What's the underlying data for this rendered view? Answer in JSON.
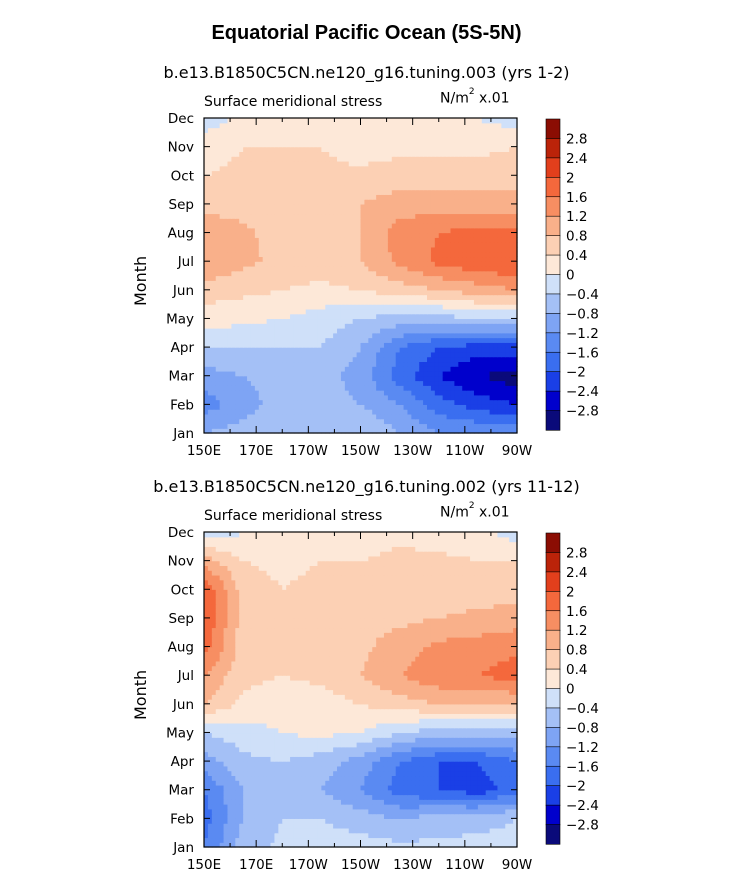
{
  "page": {
    "title": "Equatorial Pacific Ocean (5S-5N)"
  },
  "panels": [
    {
      "case_title": "b.e13.B1850C5CN.ne120_g16.tuning.003 (yrs 1-2)",
      "left_string": "Surface meridional stress",
      "units": "N/m",
      "units_sup": "2",
      "units_scale": " x.01",
      "ylabel": "Month"
    },
    {
      "case_title": "b.e13.B1850C5CN.ne120_g16.tuning.002 (yrs 11-12)",
      "left_string": "Surface meridional stress",
      "units": "N/m",
      "units_sup": "2",
      "units_scale": " x.01",
      "ylabel": "Month"
    }
  ],
  "colors": {
    "levels": [
      "#0a0a7a",
      "#0000cc",
      "#1a3fe6",
      "#3a6ef0",
      "#5a8af2",
      "#7ea4f4",
      "#a4c0f6",
      "#cfe0f9",
      "#fde8d8",
      "#fcd0b4",
      "#f9b08a",
      "#f78e62",
      "#f4683c",
      "#e23f1c",
      "#bb2309",
      "#8b0d03"
    ]
  },
  "chart_data": [
    {
      "type": "heatmap",
      "title": "b.e13.B1850C5CN.ne120_g16.tuning.003 (yrs 1-2)",
      "xlabel": "",
      "ylabel": "Month",
      "x_ticks": [
        "150E",
        "170E",
        "170W",
        "150W",
        "130W",
        "110W",
        "90W"
      ],
      "x_lon": [
        150,
        170,
        190,
        210,
        230,
        250,
        270
      ],
      "xlim": [
        150,
        270
      ],
      "y_ticks": [
        "Jan",
        "Feb",
        "Mar",
        "Apr",
        "May",
        "Jun",
        "Jul",
        "Aug",
        "Sep",
        "Oct",
        "Nov",
        "Dec"
      ],
      "ylim": [
        1,
        12
      ],
      "colorbar_levels": [
        -2.8,
        -2.4,
        -2,
        -1.6,
        -1.2,
        -0.8,
        -0.4,
        0,
        0.4,
        0.8,
        1.2,
        1.6,
        2,
        2.4,
        2.8
      ],
      "colorbar_labels": [
        "2.8",
        "2.4",
        "2",
        "1.6",
        "1.2",
        "0.8",
        "0.4",
        "0",
        "−0.4",
        "−0.8",
        "−1.2",
        "−1.6",
        "−2",
        "−2.4",
        "−2.8"
      ],
      "lon": [
        150,
        165,
        180,
        195,
        210,
        225,
        240,
        255,
        270
      ],
      "months": [
        "Jan",
        "Feb",
        "Mar",
        "Apr",
        "May",
        "Jun",
        "Jul",
        "Aug",
        "Sep",
        "Oct",
        "Nov",
        "Dec"
      ],
      "values": [
        [
          -0.8,
          -0.6,
          -0.4,
          -0.4,
          -0.4,
          -0.8,
          -1.2,
          -1.2,
          -1.2
        ],
        [
          -1.4,
          -1.0,
          -0.6,
          -0.6,
          -0.8,
          -1.2,
          -1.8,
          -2.2,
          -2.4
        ],
        [
          -1.0,
          -0.8,
          -0.6,
          -0.6,
          -1.0,
          -1.8,
          -2.4,
          -2.8,
          -3.0
        ],
        [
          -0.4,
          -0.4,
          -0.4,
          -0.4,
          -0.8,
          -1.6,
          -2.0,
          -2.2,
          -2.2
        ],
        [
          0.2,
          0.1,
          0.0,
          -0.2,
          -0.4,
          -0.6,
          -0.6,
          -0.4,
          -0.4
        ],
        [
          0.6,
          0.5,
          0.4,
          0.3,
          0.4,
          0.6,
          0.8,
          1.0,
          1.2
        ],
        [
          1.2,
          0.9,
          0.7,
          0.6,
          0.8,
          1.3,
          1.7,
          1.9,
          2.0
        ],
        [
          1.2,
          0.9,
          0.6,
          0.6,
          0.8,
          1.4,
          1.6,
          1.8,
          1.7
        ],
        [
          0.6,
          0.6,
          0.5,
          0.5,
          0.8,
          1.0,
          1.0,
          1.0,
          1.0
        ],
        [
          0.4,
          0.5,
          0.5,
          0.5,
          0.5,
          0.6,
          0.6,
          0.6,
          0.6
        ],
        [
          0.2,
          0.4,
          0.4,
          0.4,
          0.2,
          0.3,
          0.3,
          0.3,
          0.4
        ],
        [
          -0.2,
          0.1,
          0.2,
          0.2,
          0.1,
          0.1,
          0.1,
          0.0,
          -0.2
        ]
      ]
    },
    {
      "type": "heatmap",
      "title": "b.e13.B1850C5CN.ne120_g16.tuning.002 (yrs 11-12)",
      "xlabel": "",
      "ylabel": "Month",
      "x_ticks": [
        "150E",
        "170E",
        "170W",
        "150W",
        "130W",
        "110W",
        "90W"
      ],
      "x_lon": [
        150,
        170,
        190,
        210,
        230,
        250,
        270
      ],
      "xlim": [
        150,
        270
      ],
      "y_ticks": [
        "Jan",
        "Feb",
        "Mar",
        "Apr",
        "May",
        "Jun",
        "Jul",
        "Aug",
        "Sep",
        "Oct",
        "Nov",
        "Dec"
      ],
      "ylim": [
        1,
        12
      ],
      "colorbar_levels": [
        -2.8,
        -2.4,
        -2,
        -1.6,
        -1.2,
        -0.8,
        -0.4,
        0,
        0.4,
        0.8,
        1.2,
        1.6,
        2,
        2.4,
        2.8
      ],
      "colorbar_labels": [
        "2.8",
        "2.4",
        "2",
        "1.6",
        "1.2",
        "0.8",
        "0.4",
        "0",
        "−0.4",
        "−0.8",
        "−1.2",
        "−1.6",
        "−2",
        "−2.4",
        "−2.8"
      ],
      "lon": [
        150,
        165,
        180,
        195,
        210,
        225,
        240,
        255,
        270
      ],
      "months": [
        "Jan",
        "Feb",
        "Mar",
        "Apr",
        "May",
        "Jun",
        "Jul",
        "Aug",
        "Sep",
        "Oct",
        "Nov",
        "Dec"
      ],
      "values": [
        [
          -1.6,
          -0.6,
          -0.3,
          -0.2,
          -0.2,
          -0.3,
          -0.3,
          -0.3,
          -0.3
        ],
        [
          -1.8,
          -0.8,
          -0.4,
          -0.4,
          -0.6,
          -0.8,
          -0.6,
          -0.5,
          -0.4
        ],
        [
          -1.6,
          -0.8,
          -0.6,
          -0.8,
          -1.2,
          -1.8,
          -2.0,
          -2.2,
          -1.8
        ],
        [
          -1.0,
          -0.5,
          -0.4,
          -0.6,
          -1.0,
          -1.6,
          -2.0,
          -2.0,
          -1.6
        ],
        [
          -0.4,
          -0.2,
          0.0,
          0.1,
          0.0,
          -0.4,
          -0.6,
          -0.6,
          -0.6
        ],
        [
          0.8,
          0.3,
          0.2,
          0.2,
          0.4,
          0.6,
          0.8,
          0.8,
          0.8
        ],
        [
          1.2,
          0.5,
          0.4,
          0.5,
          0.8,
          1.2,
          1.5,
          1.6,
          1.8
        ],
        [
          1.8,
          0.6,
          0.4,
          0.5,
          0.7,
          1.0,
          1.3,
          1.4,
          1.5
        ],
        [
          2.0,
          0.6,
          0.5,
          0.6,
          0.7,
          0.7,
          0.8,
          0.9,
          1.0
        ],
        [
          2.0,
          0.6,
          0.4,
          0.5,
          0.5,
          0.6,
          0.6,
          0.6,
          0.6
        ],
        [
          1.0,
          0.4,
          0.3,
          0.4,
          0.4,
          0.5,
          0.5,
          0.4,
          0.4
        ],
        [
          -0.3,
          0.0,
          0.2,
          0.2,
          0.2,
          0.3,
          0.2,
          0.1,
          -0.2
        ]
      ]
    }
  ]
}
